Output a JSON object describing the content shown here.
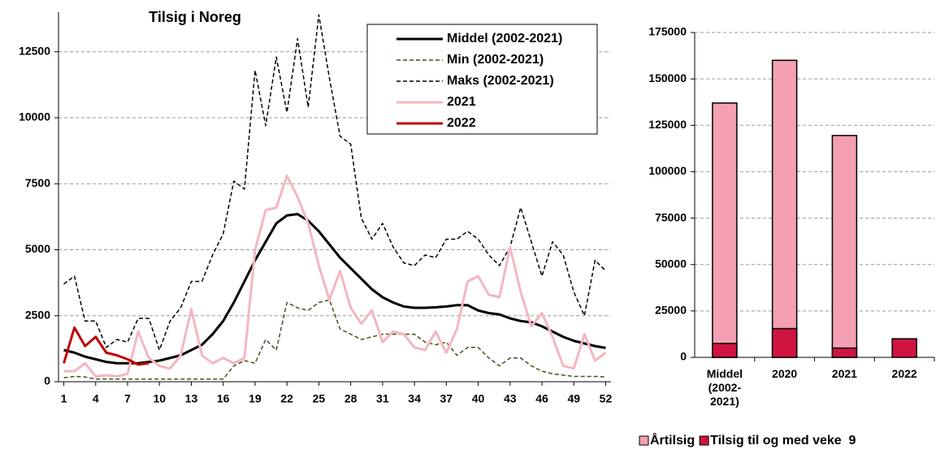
{
  "chart_data": [
    {
      "type": "line",
      "title": "Tilsig i Noreg",
      "x": [
        1,
        2,
        3,
        4,
        5,
        6,
        7,
        8,
        9,
        10,
        11,
        12,
        13,
        14,
        15,
        16,
        17,
        18,
        19,
        20,
        21,
        22,
        23,
        24,
        25,
        26,
        27,
        28,
        29,
        30,
        31,
        32,
        33,
        34,
        35,
        36,
        37,
        38,
        39,
        40,
        41,
        42,
        43,
        44,
        45,
        46,
        47,
        48,
        49,
        50,
        51,
        52
      ],
      "xlim": [
        0.5,
        52.5
      ],
      "xticks": [
        1,
        4,
        7,
        10,
        13,
        16,
        19,
        22,
        25,
        28,
        31,
        34,
        37,
        40,
        43,
        46,
        49,
        52
      ],
      "ylim": [
        0,
        14000
      ],
      "yticks": [
        0,
        2500,
        5000,
        7500,
        10000,
        12500
      ],
      "grid": true,
      "legend": "upper right",
      "series": [
        {
          "name": "Middel (2002-2021)",
          "color": "#000000",
          "line_style": "solid",
          "line_width": 3,
          "values": [
            1200,
            1100,
            950,
            850,
            750,
            700,
            700,
            700,
            750,
            800,
            900,
            1000,
            1200,
            1400,
            1800,
            2300,
            3000,
            3800,
            4600,
            5300,
            6000,
            6300,
            6350,
            6100,
            5700,
            5200,
            4700,
            4300,
            3900,
            3500,
            3200,
            3000,
            2850,
            2800,
            2800,
            2820,
            2850,
            2900,
            2900,
            2700,
            2600,
            2550,
            2400,
            2300,
            2250,
            2100,
            1900,
            1700,
            1550,
            1450,
            1350,
            1280
          ]
        },
        {
          "name": "Min (2002-2021)",
          "color": "#4d4d1a",
          "line_style": "dashed",
          "line_width": 1.5,
          "values": [
            150,
            200,
            180,
            100,
            100,
            100,
            100,
            100,
            100,
            100,
            100,
            100,
            100,
            100,
            100,
            100,
            600,
            800,
            700,
            1600,
            1200,
            3000,
            2800,
            2700,
            3000,
            3100,
            2000,
            1800,
            1600,
            1700,
            1800,
            1800,
            1800,
            1800,
            1500,
            1400,
            1500,
            1000,
            1300,
            1300,
            900,
            600,
            900,
            900,
            600,
            400,
            300,
            250,
            200,
            200,
            200,
            180
          ]
        },
        {
          "name": "Maks (2002-2021)",
          "color": "#000000",
          "line_style": "dashed",
          "line_width": 1.5,
          "values": [
            3700,
            4000,
            2300,
            2300,
            1300,
            1600,
            1500,
            2400,
            2400,
            1200,
            2300,
            2800,
            3800,
            3800,
            4800,
            5600,
            7600,
            7300,
            11800,
            9700,
            12300,
            10200,
            13000,
            10400,
            13900,
            11500,
            9300,
            9000,
            6200,
            5400,
            6000,
            5100,
            4500,
            4400,
            4800,
            4700,
            5400,
            5400,
            5700,
            5400,
            4800,
            4400,
            5100,
            6600,
            5300,
            4000,
            5300,
            4800,
            3400,
            2500,
            4600,
            4200
          ]
        },
        {
          "name": "2021",
          "color": "#f4b6c2",
          "line_style": "solid",
          "line_width": 3,
          "values": [
            400,
            400,
            700,
            200,
            250,
            200,
            300,
            1900,
            900,
            600,
            500,
            1000,
            2750,
            1000,
            700,
            900,
            700,
            900,
            5000,
            6500,
            6600,
            7800,
            7000,
            6000,
            4400,
            3100,
            4200,
            2800,
            2200,
            2700,
            1500,
            1900,
            1800,
            1300,
            1200,
            1900,
            1100,
            2000,
            3800,
            4000,
            3300,
            3200,
            5100,
            3400,
            2100,
            2600,
            1700,
            600,
            500,
            1800,
            800,
            1100
          ]
        },
        {
          "name": "2022",
          "color": "#c00000",
          "line_style": "solid",
          "line_width": 3,
          "values": [
            700,
            2050,
            1350,
            1700,
            1100,
            1000,
            850,
            650,
            700,
            null,
            null,
            null,
            null,
            null,
            null,
            null,
            null,
            null,
            null,
            null,
            null,
            null,
            null,
            null,
            null,
            null,
            null,
            null,
            null,
            null,
            null,
            null,
            null,
            null,
            null,
            null,
            null,
            null,
            null,
            null,
            null,
            null,
            null,
            null,
            null,
            null,
            null,
            null,
            null,
            null,
            null,
            null
          ]
        }
      ]
    },
    {
      "type": "bar",
      "categories": [
        "Middel (2002-2021)",
        "2020",
        "2021",
        "2022"
      ],
      "ylim": [
        0,
        175000
      ],
      "yticks": [
        0,
        25000,
        50000,
        75000,
        100000,
        125000,
        150000,
        175000
      ],
      "grid": true,
      "legend": "bottom",
      "series": [
        {
          "name": "Årtilsig",
          "color": "#f4a0b2",
          "values": [
            137000,
            160000,
            119500,
            null
          ]
        },
        {
          "name": "Tilsig til og med veke  9",
          "color": "#d01442",
          "values": [
            7500,
            15500,
            5000,
            10000
          ]
        }
      ]
    }
  ]
}
